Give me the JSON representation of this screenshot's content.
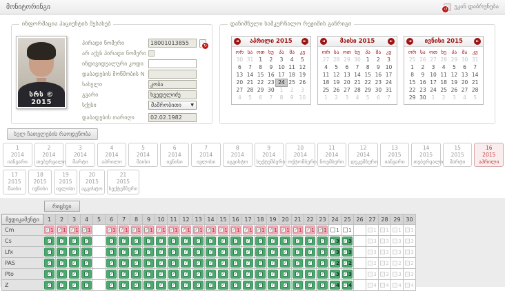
{
  "colors": {
    "accent_red": "#9e1515",
    "selected_month_red": "#c43b3b",
    "green_cell": "#4caa70",
    "pink_cell": "#f3aab5",
    "header_gray": "#d4d4d4"
  },
  "header": {
    "title": "მონიტორინგი",
    "back_label": "უკან დაბრუნება"
  },
  "patient": {
    "legend": "ინფორმაცია პაციენტის შესახებ",
    "photo_watermark": "სრს © 2015",
    "fields": [
      {
        "label": "პირადი ნომერი",
        "value": "18001013855",
        "control": "text_disabled",
        "icon": "refresh-doc-icon"
      },
      {
        "label": "არ აქვს პირადი ნომერი",
        "control": "checkbox",
        "checked": false
      },
      {
        "label": "ინდივიდუალური კოდი",
        "value": "",
        "control": "text"
      },
      {
        "label": "დაბადების მოწმობის N",
        "value": "",
        "control": "text_disabled"
      },
      {
        "label": "სახელი",
        "value": "კობა",
        "control": "text_disabled"
      },
      {
        "label": "გვარი",
        "value": "ხვედელიძე",
        "control": "text_disabled"
      },
      {
        "label": "სქესი",
        "value": "მამრობითი",
        "control": "select"
      },
      {
        "label": "დაბადების თარიღი",
        "value": "02.02.1982",
        "control": "text_disabled",
        "gap": true
      }
    ]
  },
  "schedule": {
    "legend": "დანიშნული სამკურნალო რეჟიმის განრიგი",
    "weekday_headers": [
      "ორ",
      "სა",
      "ოთ",
      "ხუ",
      "პა",
      "შა",
      "კვ"
    ],
    "calendars": [
      {
        "title": "აპრილი 2015",
        "weeks": [
          [
            "30o",
            "31o",
            "1",
            "2",
            "3",
            "4",
            "5"
          ],
          [
            "6",
            "7",
            "8",
            "9",
            "10",
            "11",
            "12"
          ],
          [
            "13",
            "14",
            "15",
            "16",
            "17",
            "18",
            "19"
          ],
          [
            "20",
            "21",
            "22",
            "23",
            "24s",
            "25",
            "26"
          ],
          [
            "27",
            "28",
            "29",
            "30",
            "1o",
            "2o",
            "3o"
          ],
          [
            "4o",
            "5o",
            "6o",
            "7o",
            "8o",
            "9o",
            "10o"
          ]
        ]
      },
      {
        "title": "მაისი 2015",
        "weeks": [
          [
            "27o",
            "28o",
            "29o",
            "30o",
            "1",
            "2",
            "3"
          ],
          [
            "4",
            "5",
            "6",
            "7",
            "8",
            "9",
            "10"
          ],
          [
            "11",
            "12",
            "13",
            "14",
            "15",
            "16",
            "17"
          ],
          [
            "18",
            "19",
            "20",
            "21",
            "22",
            "23",
            "24"
          ],
          [
            "25",
            "26",
            "27",
            "28",
            "29",
            "30",
            "31"
          ],
          [
            "1o",
            "2o",
            "3o",
            "4o",
            "5o",
            "6o",
            "7o"
          ]
        ]
      },
      {
        "title": "ივნისი 2015",
        "weeks": [
          [
            "25o",
            "26o",
            "27o",
            "28o",
            "29o",
            "30o",
            "31o"
          ],
          [
            "1",
            "2",
            "3",
            "4",
            "5",
            "6",
            "7"
          ],
          [
            "8",
            "9",
            "10",
            "11",
            "12",
            "13",
            "14"
          ],
          [
            "15",
            "16",
            "17",
            "18",
            "19",
            "20",
            "21"
          ],
          [
            "22",
            "23",
            "24",
            "25",
            "26",
            "27",
            "28"
          ],
          [
            "29",
            "30",
            "1o",
            "2o",
            "3o",
            "4o",
            "5o"
          ]
        ]
      }
    ]
  },
  "totals_button_label": "სულ ჩათვლების რაოდენობა",
  "months": {
    "items": [
      {
        "num": "1",
        "year": "2014",
        "name": "იანვარი",
        "row": 1
      },
      {
        "num": "2",
        "year": "2014",
        "name": "თებერვალი",
        "row": 1
      },
      {
        "num": "3",
        "year": "2014",
        "name": "მარტი",
        "row": 1
      },
      {
        "num": "4",
        "year": "2014",
        "name": "აპრილი",
        "row": 1
      },
      {
        "num": "5",
        "year": "2014",
        "name": "მაისი",
        "row": 1
      },
      {
        "num": "6",
        "year": "2014",
        "name": "ივნისი",
        "row": 1
      },
      {
        "num": "7",
        "year": "2014",
        "name": "ივლისი",
        "row": 1
      },
      {
        "num": "8",
        "year": "2014",
        "name": "აგვისტო",
        "row": 1
      },
      {
        "num": "9",
        "year": "2014",
        "name": "სექტემბერი",
        "row": 1
      },
      {
        "num": "10",
        "year": "2014",
        "name": "ოქტომბერი",
        "row": 1
      },
      {
        "num": "11",
        "year": "2014",
        "name": "ნოემბერი",
        "row": 1
      },
      {
        "num": "12",
        "year": "2014",
        "name": "დეკემბერი",
        "row": 1
      },
      {
        "num": "13",
        "year": "2015",
        "name": "იანვარი",
        "row": 1
      },
      {
        "num": "14",
        "year": "2015",
        "name": "თებერვალი",
        "row": 1
      },
      {
        "num": "15",
        "year": "2015",
        "name": "მარტი",
        "row": 1
      },
      {
        "num": "16",
        "year": "2015",
        "name": "აპრილი",
        "row": 1,
        "selected": true
      },
      {
        "num": "17",
        "year": "2015",
        "name": "მაისი",
        "row": 2
      },
      {
        "num": "18",
        "year": "2015",
        "name": "ივნისი",
        "row": 2
      },
      {
        "num": "19",
        "year": "2015",
        "name": "ივლისი",
        "row": 2
      },
      {
        "num": "20",
        "year": "2015",
        "name": "აგვისტო",
        "row": 2
      },
      {
        "num": "21",
        "year": "2015",
        "name": "სექტემბერი",
        "row": 2
      }
    ]
  },
  "med_table": {
    "date_button_label": "რიცხვი",
    "med_header": "მედიკამენტი",
    "day_columns": [
      1,
      2,
      3,
      4,
      5,
      6,
      7,
      8,
      9,
      10,
      11,
      12,
      13,
      14,
      15,
      16,
      17,
      18,
      19,
      20,
      21,
      22,
      23,
      24,
      25,
      26,
      27,
      28,
      29,
      30
    ],
    "empty_days": [
      5,
      26
    ],
    "checkbox_days": [
      24,
      25
    ],
    "disabled_days": [
      27,
      28,
      29,
      30
    ],
    "rows": [
      {
        "med": "Cm",
        "type": "pink",
        "dose": "1"
      },
      {
        "med": "Cs",
        "type": "green",
        "dose": "3"
      },
      {
        "med": "Lfx",
        "type": "green",
        "dose": "3"
      },
      {
        "med": "PAS",
        "type": "green",
        "dose": "2"
      },
      {
        "med": "Pto",
        "type": "green",
        "dose": "3"
      },
      {
        "med": "Z",
        "type": "green",
        "dose": "4"
      }
    ]
  }
}
